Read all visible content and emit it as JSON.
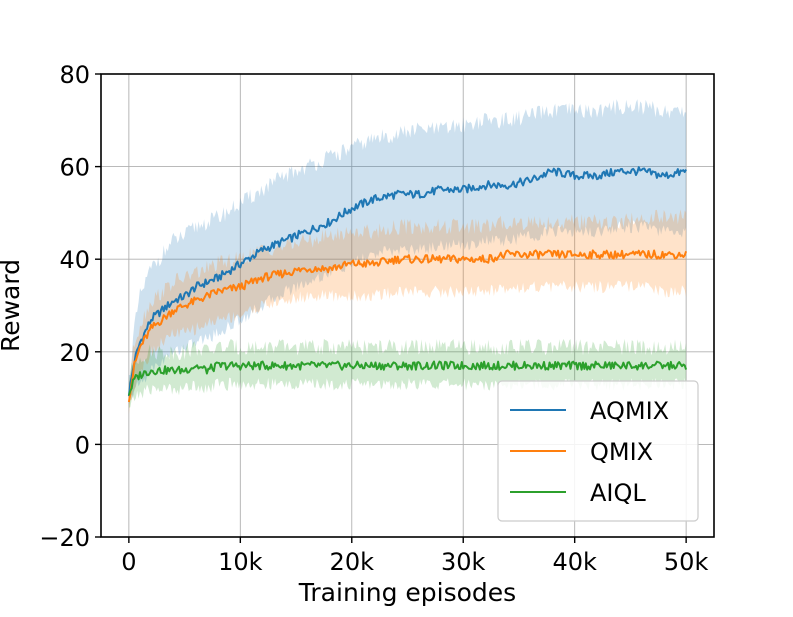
{
  "chart_data": {
    "type": "line",
    "title": "",
    "xlabel": "Training episodes",
    "ylabel": "Reward",
    "xlim": [
      -2500,
      52500
    ],
    "ylim": [
      -20,
      80
    ],
    "xticks": [
      0,
      10000,
      20000,
      30000,
      40000,
      50000
    ],
    "xtick_labels": [
      "0",
      "10k",
      "20k",
      "30k",
      "40k",
      "50k"
    ],
    "yticks": [
      -20,
      0,
      20,
      40,
      60,
      80
    ],
    "ytick_labels": [
      "−20",
      "0",
      "20",
      "40",
      "60",
      "80"
    ],
    "grid": true,
    "legend_position": "lower-right",
    "x": [
      0,
      500,
      1000,
      2000,
      3000,
      4000,
      5000,
      6000,
      7000,
      8000,
      10000,
      12000,
      14000,
      16000,
      18000,
      20000,
      22000,
      24000,
      26000,
      28000,
      30000,
      32000,
      34000,
      36000,
      38000,
      40000,
      42000,
      44000,
      46000,
      48000,
      50000
    ],
    "series": [
      {
        "name": "AQMIX",
        "color": "#1f77b4",
        "values": [
          11,
          18,
          22,
          27,
          29,
          31,
          32,
          34,
          35,
          36,
          39,
          42,
          44,
          46,
          48,
          51,
          53,
          54,
          54,
          55,
          55,
          56,
          56,
          57,
          59,
          58,
          58,
          59,
          59,
          58,
          59
        ],
        "upper": [
          14,
          25,
          32,
          38,
          41,
          44,
          45,
          47,
          48,
          49,
          52,
          55,
          58,
          60,
          62,
          64,
          66,
          67,
          68,
          68,
          69,
          70,
          70,
          71,
          72,
          72,
          72,
          73,
          73,
          72,
          72
        ],
        "lower": [
          8,
          12,
          13,
          16,
          18,
          20,
          21,
          22,
          23,
          24,
          27,
          30,
          33,
          35,
          37,
          39,
          41,
          42,
          42,
          43,
          43,
          44,
          44,
          45,
          46,
          46,
          46,
          47,
          47,
          46,
          46
        ]
      },
      {
        "name": "QMIX",
        "color": "#ff7f0e",
        "values": [
          10,
          17,
          21,
          25,
          27,
          29,
          30,
          31,
          32,
          33,
          34,
          36,
          37,
          38,
          38,
          39,
          39,
          40,
          40,
          40,
          40,
          40,
          41,
          41,
          41,
          41,
          41,
          41,
          41,
          41,
          41
        ],
        "upper": [
          13,
          22,
          26,
          31,
          33,
          35,
          36,
          37,
          38,
          39,
          40,
          42,
          43,
          44,
          45,
          46,
          46,
          47,
          47,
          47,
          47,
          47,
          48,
          48,
          48,
          48,
          48,
          48,
          49,
          49,
          49
        ],
        "lower": [
          7,
          13,
          16,
          20,
          22,
          24,
          24,
          25,
          26,
          27,
          28,
          30,
          31,
          32,
          32,
          32,
          32,
          33,
          33,
          33,
          33,
          33,
          34,
          34,
          34,
          34,
          34,
          34,
          34,
          33,
          33
        ]
      },
      {
        "name": "AIQL",
        "color": "#2ca02c",
        "values": [
          11,
          14,
          15,
          16,
          16,
          16,
          16,
          17,
          16,
          17,
          17,
          17,
          17,
          17,
          17,
          17,
          17,
          17,
          17,
          17,
          17,
          17,
          17,
          17,
          17,
          17,
          17,
          17,
          17,
          17,
          17
        ],
        "upper": [
          14,
          18,
          19,
          20,
          20,
          20,
          20,
          21,
          20,
          21,
          21,
          21,
          21,
          21,
          21,
          21,
          21,
          21,
          21,
          21,
          21,
          21,
          21,
          21,
          21,
          21,
          21,
          21,
          21,
          21,
          21
        ],
        "lower": [
          8,
          10,
          11,
          12,
          12,
          12,
          12,
          13,
          12,
          13,
          13,
          13,
          13,
          13,
          13,
          13,
          13,
          13,
          13,
          13,
          13,
          13,
          13,
          13,
          13,
          13,
          13,
          13,
          13,
          13,
          13
        ]
      }
    ]
  }
}
